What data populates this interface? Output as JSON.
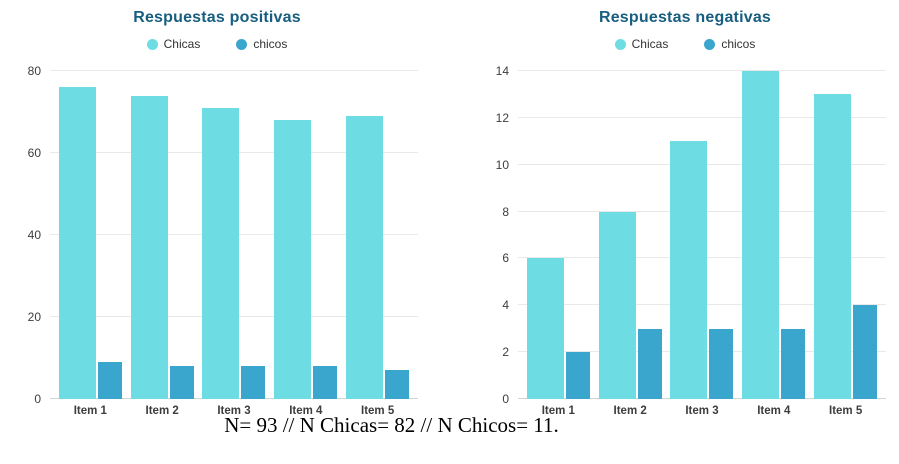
{
  "caption": "N= 93 // N Chicas= 82 // N Chicos= 11.",
  "colors": {
    "title": "#175e80",
    "series": [
      "#6edde3",
      "#3aa6cd"
    ],
    "gridline": "#e9e9e9"
  },
  "chart_data": [
    {
      "type": "bar",
      "title": "Respuestas positivas",
      "categories": [
        "Item 1",
        "Item 2",
        "Item 3",
        "Item 4",
        "Item 5"
      ],
      "series": [
        {
          "name": "Chicas",
          "values": [
            76,
            74,
            71,
            68,
            69
          ]
        },
        {
          "name": "chicos",
          "values": [
            9,
            8,
            8,
            8,
            7
          ]
        }
      ],
      "xlabel": "",
      "ylabel": "",
      "ylim": [
        0,
        80
      ],
      "yticks": [
        0,
        20,
        40,
        60,
        80
      ],
      "grid": true,
      "legend_position": "top"
    },
    {
      "type": "bar",
      "title": "Respuestas negativas",
      "categories": [
        "Item 1",
        "Item 2",
        "Item 3",
        "Item 4",
        "Item 5"
      ],
      "series": [
        {
          "name": "Chicas",
          "values": [
            6,
            8,
            11,
            14,
            13
          ]
        },
        {
          "name": "chicos",
          "values": [
            2,
            3,
            3,
            3,
            4
          ]
        }
      ],
      "xlabel": "",
      "ylabel": "",
      "ylim": [
        0,
        14
      ],
      "yticks": [
        0,
        2,
        4,
        6,
        8,
        10,
        12,
        14
      ],
      "grid": true,
      "legend_position": "top"
    }
  ]
}
